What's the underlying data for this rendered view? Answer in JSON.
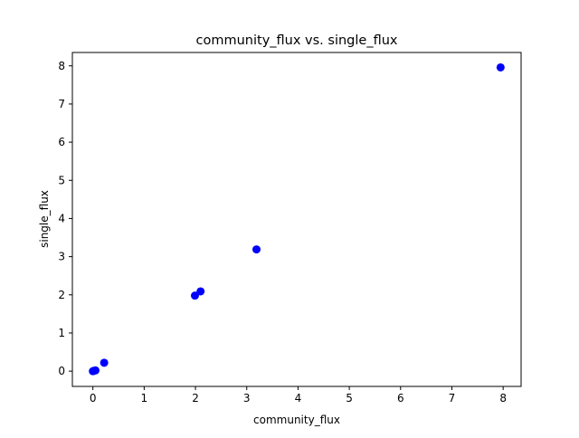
{
  "chart_data": {
    "type": "scatter",
    "title": "community_flux vs. single_flux",
    "xlabel": "community_flux",
    "ylabel": "single_flux",
    "xlim": [
      -0.4,
      8.35
    ],
    "ylim": [
      -0.4,
      8.35
    ],
    "xticks": [
      0,
      1,
      2,
      3,
      4,
      5,
      6,
      7,
      8
    ],
    "yticks": [
      0,
      1,
      2,
      3,
      4,
      5,
      6,
      7,
      8
    ],
    "grid": false,
    "marker_color": "#0000ff",
    "points": [
      {
        "x": 0.0,
        "y": 0.0
      },
      {
        "x": 0.02,
        "y": 0.01
      },
      {
        "x": 0.05,
        "y": 0.02
      },
      {
        "x": 0.22,
        "y": 0.22
      },
      {
        "x": 1.99,
        "y": 1.98
      },
      {
        "x": 2.1,
        "y": 2.09
      },
      {
        "x": 3.19,
        "y": 3.19
      },
      {
        "x": 7.95,
        "y": 7.96
      }
    ]
  }
}
